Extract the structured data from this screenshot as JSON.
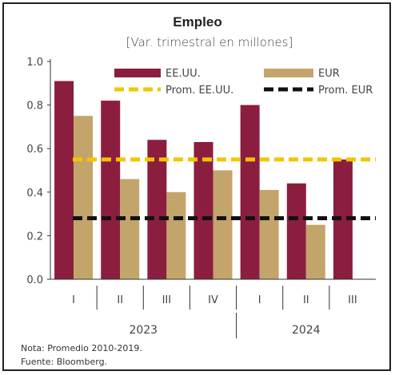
{
  "chart_data": {
    "type": "bar",
    "title": "Empleo",
    "subtitle": "[Var. trimestral en millones]",
    "categories": [
      "I",
      "II",
      "III",
      "IV",
      "I",
      "II",
      "III"
    ],
    "groups": [
      {
        "label": "2023",
        "categories": [
          "I",
          "II",
          "III",
          "IV"
        ]
      },
      {
        "label": "2024",
        "categories": [
          "I",
          "II",
          "III"
        ]
      }
    ],
    "series": [
      {
        "name": "EE.UU.",
        "color": "#8b1e3f",
        "values": [
          0.91,
          0.82,
          0.64,
          0.63,
          0.8,
          0.44,
          0.55
        ]
      },
      {
        "name": "EUR",
        "color": "#c3a56b",
        "values": [
          0.75,
          0.46,
          0.4,
          0.5,
          0.41,
          0.25,
          null
        ]
      }
    ],
    "reference_lines": [
      {
        "name": "Prom. EE.UU.",
        "color": "#f5c400",
        "value": 0.55,
        "style": "dashed"
      },
      {
        "name": "Prom. EUR",
        "color": "#111111",
        "value": 0.28,
        "style": "dashed"
      }
    ],
    "ylim": [
      0,
      1.0
    ],
    "yticks": [
      "0.0",
      "0.2",
      "0.4",
      "0.6",
      "0.8",
      "1.0"
    ],
    "grid": false,
    "legend_position": "top"
  },
  "notes": [
    "Nota: Promedio 2010-2019.",
    "Fuente: Bloomberg."
  ]
}
